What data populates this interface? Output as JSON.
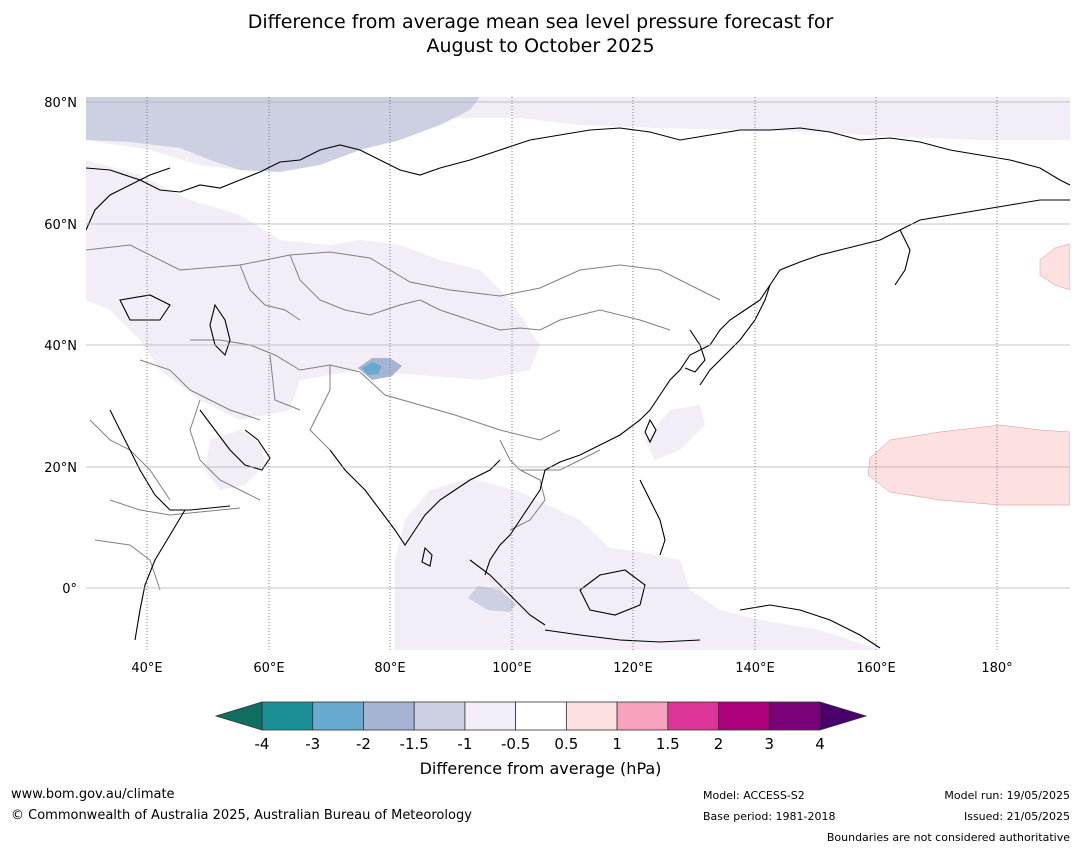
{
  "title_line1": "Difference from average mean sea level pressure forecast for",
  "title_line2": "August to October 2025",
  "lat_labels": [
    "80°N",
    "60°N",
    "40°N",
    "20°N",
    "0°"
  ],
  "lon_labels": [
    "40°E",
    "60°E",
    "80°E",
    "100°E",
    "120°E",
    "140°E",
    "160°E",
    "180°"
  ],
  "colorbar": {
    "title": "Difference from average (hPa)",
    "tick_labels": [
      "-4",
      "-3",
      "-2",
      "-1.5",
      "-1",
      "-0.5",
      "0.5",
      "1",
      "1.5",
      "2",
      "3",
      "4"
    ],
    "colors": {
      "below_min": "#0f6e5f",
      "bins": [
        "#1b8f96",
        "#67a9cf",
        "#a6b4d4",
        "#cdd0e3",
        "#f2edf6",
        "#ffffff",
        "#fde0e0",
        "#f7a1bd",
        "#dd3497",
        "#ae017e",
        "#7a0177"
      ],
      "above_max": "#49006a"
    }
  },
  "footer": {
    "website": "www.bom.gov.au/climate",
    "copyright": "© Commonwealth of Australia 2025, Australian Bureau of Meteorology",
    "model": "Model: ACCESS-S2",
    "base_period": "Base period: 1981-2018",
    "model_run": "Model run: 19/05/2025",
    "issued": "Issued: 21/05/2025",
    "disclaimer": "Boundaries are not considered authoritative"
  }
}
